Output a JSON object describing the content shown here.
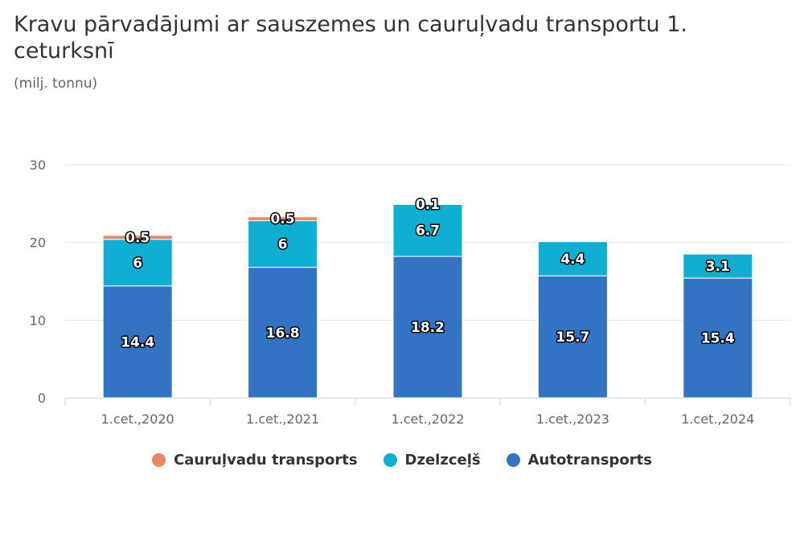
{
  "chart_data": {
    "type": "bar",
    "stacked": true,
    "title": "Kravu pārvadājumi ar sauszemes un cauruļvadu transportu 1. ceturksnī",
    "subtitle": "(milj. tonnu)",
    "categories": [
      "1.cet.,2020",
      "1.cet.,2021",
      "1.cet.,2022",
      "1.cet.,2023",
      "1.cet.,2024"
    ],
    "series": [
      {
        "name": "Autotransports",
        "color": "#3373c4",
        "values": [
          14.4,
          16.8,
          18.2,
          15.7,
          15.4
        ],
        "labels": [
          "14.4",
          "16.8",
          "18.2",
          "15.7",
          "15.4"
        ]
      },
      {
        "name": "Dzelzceļš",
        "color": "#0eafd3",
        "values": [
          6,
          6,
          6.7,
          4.4,
          3.1
        ],
        "labels": [
          "6",
          "6",
          "6.7",
          "4.4",
          "3.1"
        ]
      },
      {
        "name": "Cauruļvadu transports",
        "color": "#ef8463",
        "values": [
          0.5,
          0.5,
          0.1,
          0,
          0
        ],
        "labels": [
          "0.5",
          "0.5",
          "0.1",
          "",
          ""
        ]
      }
    ],
    "ylim": [
      0,
      30
    ],
    "yticks": [
      "0",
      "10",
      "20",
      "30"
    ],
    "grid": true,
    "legend_position": "bottom",
    "legend_order": [
      "Cauruļvadu transports",
      "Dzelzceļš",
      "Autotransports"
    ]
  }
}
